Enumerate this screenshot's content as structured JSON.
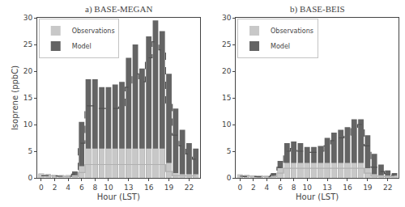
{
  "chart_data": [
    {
      "type": "bar",
      "title": "a) BASE-MEGAN",
      "x_label": "Hour (LST)",
      "y_label": "Isoprene (ppbC)",
      "x": [
        0,
        1,
        2,
        3,
        4,
        5,
        6,
        7,
        8,
        9,
        10,
        11,
        12,
        13,
        14,
        15,
        16,
        17,
        18,
        19,
        20,
        21,
        22,
        23
      ],
      "series": [
        {
          "name": "Model",
          "type": "bar",
          "color": "#646464",
          "values": [
            0.8,
            0.7,
            0.6,
            0.5,
            0.5,
            1.2,
            10.5,
            18.5,
            18.5,
            17.0,
            17.0,
            17.5,
            18.0,
            22.5,
            25.0,
            20.5,
            26.5,
            29.5,
            27.5,
            19.5,
            13.0,
            9.0,
            6.5,
            5.5
          ]
        },
        {
          "name": "Observations",
          "type": "bar",
          "color": "#c8c8c8",
          "values": [
            0.8,
            0.7,
            0.6,
            0.5,
            0.5,
            0.5,
            2.2,
            5.5,
            5.5,
            5.5,
            5.5,
            5.5,
            5.5,
            5.5,
            5.5,
            5.5,
            5.5,
            5.5,
            5.5,
            2.8,
            0.9,
            0.7,
            0.7,
            0.7
          ]
        },
        {
          "type": "line",
          "line_style": "solid",
          "color": "#b0b0b0",
          "values": [
            0.4,
            0.4,
            0.35,
            0.3,
            0.25,
            0.25,
            1.0,
            2.5,
            2.5,
            2.5,
            2.5,
            2.5,
            2.5,
            2.5,
            2.5,
            2.5,
            2.5,
            2.5,
            2.5,
            1.2,
            0.4,
            0.4,
            0.35,
            0.4
          ]
        },
        {
          "type": "line",
          "line_style": "dashed",
          "color": "#505050",
          "values": [
            0.4,
            0.4,
            0.35,
            0.3,
            0.3,
            0.7,
            6.5,
            13.5,
            13.5,
            13.0,
            13.0,
            13.0,
            13.5,
            17.0,
            19.5,
            18.0,
            22.5,
            25.5,
            24.0,
            14.0,
            8.0,
            6.0,
            4.5,
            3.5
          ]
        }
      ],
      "xlim": [
        -0.6,
        23.6
      ],
      "xticks": [
        0,
        2,
        4,
        6,
        8,
        10,
        13,
        16,
        19,
        22
      ],
      "ylim": [
        0,
        30
      ],
      "yticks": [
        0,
        5,
        10,
        15,
        20,
        25,
        30
      ],
      "legend": "upper left",
      "grid": false
    },
    {
      "type": "bar",
      "title": "b) BASE-BEIS",
      "x_label": "Hour (LST)",
      "x": [
        0,
        1,
        2,
        3,
        4,
        5,
        6,
        7,
        8,
        9,
        10,
        11,
        12,
        13,
        14,
        15,
        16,
        17,
        18,
        19,
        20,
        21,
        22,
        23
      ],
      "series": [
        {
          "name": "Model",
          "type": "bar",
          "color": "#646464",
          "values": [
            0.5,
            0.4,
            0.4,
            0.35,
            0.35,
            0.9,
            3.2,
            6.5,
            6.8,
            6.5,
            5.8,
            5.8,
            6.0,
            7.5,
            8.5,
            9.0,
            9.5,
            11.0,
            11.0,
            8.0,
            4.5,
            2.5,
            1.4,
            0.9
          ]
        },
        {
          "name": "Observations",
          "type": "bar",
          "color": "#c8c8c8",
          "values": [
            0.7,
            0.6,
            0.5,
            0.5,
            0.4,
            0.4,
            1.8,
            2.8,
            2.8,
            2.8,
            2.8,
            2.8,
            2.8,
            2.8,
            2.8,
            2.8,
            2.8,
            2.8,
            2.8,
            1.8,
            0.7,
            0.5,
            0.4,
            0.4
          ]
        },
        {
          "type": "line",
          "line_style": "solid",
          "color": "#b0b0b0",
          "values": [
            0.4,
            0.35,
            0.3,
            0.3,
            0.25,
            0.25,
            0.9,
            1.8,
            1.8,
            1.8,
            1.8,
            1.8,
            1.8,
            1.8,
            1.8,
            1.8,
            1.8,
            1.8,
            1.8,
            0.9,
            0.35,
            0.3,
            0.25,
            0.3
          ]
        },
        {
          "type": "line",
          "line_style": "dashed",
          "color": "#505050",
          "values": [
            0.3,
            0.25,
            0.25,
            0.2,
            0.2,
            0.5,
            2.0,
            5.0,
            5.5,
            5.0,
            4.8,
            4.8,
            5.0,
            6.0,
            7.0,
            7.5,
            8.0,
            9.5,
            10.0,
            6.0,
            2.0,
            1.2,
            0.8,
            0.5
          ]
        }
      ],
      "xlim": [
        -0.6,
        23.6
      ],
      "xticks": [
        0,
        2,
        4,
        6,
        8,
        10,
        13,
        16,
        19,
        22
      ],
      "ylim": [
        0,
        30
      ],
      "yticks": [
        0,
        5,
        10,
        15,
        20,
        25,
        30
      ],
      "legend": "upper left",
      "grid": false
    }
  ]
}
